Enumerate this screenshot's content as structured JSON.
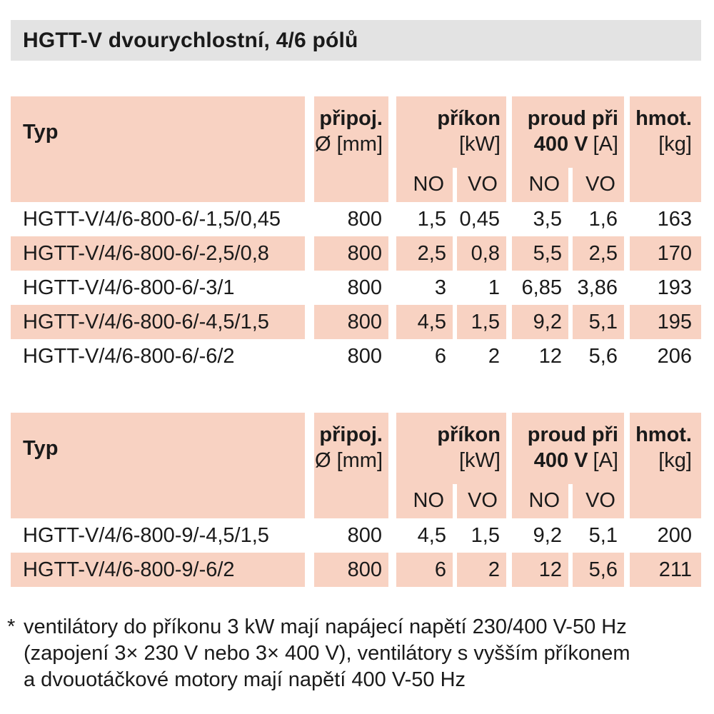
{
  "title": "HGTT-V dvourychlostní, 4/6 pólů",
  "colors": {
    "accent_bg": "#f8d2c2",
    "title_bg": "#e3e3e3",
    "text_color": "#1a1a1a"
  },
  "header": {
    "typ": "Typ",
    "pripoj_line1": "připoj.",
    "pripoj_line2": "Ø [mm]",
    "prikon_line1": "příkon",
    "prikon_line2": "[kW]",
    "proud_line1": "proud při",
    "proud_line2_value": "400 V",
    "proud_line2_unit": "[A]",
    "hmot_line1": "hmot.",
    "hmot_line2": "[kg]",
    "sub_no": "NO",
    "sub_vo": "VO"
  },
  "tables": [
    {
      "rows": [
        {
          "typ": "HGTT-V/4/6-800-6/-1,5/0,45",
          "diameter": "800",
          "power_no": "1,5",
          "power_vo": "0,45",
          "current_no": "3,5",
          "current_vo": "1,6",
          "weight": "163"
        },
        {
          "typ": "HGTT-V/4/6-800-6/-2,5/0,8",
          "diameter": "800",
          "power_no": "2,5",
          "power_vo": "0,8",
          "current_no": "5,5",
          "current_vo": "2,5",
          "weight": "170"
        },
        {
          "typ": "HGTT-V/4/6-800-6/-3/1",
          "diameter": "800",
          "power_no": "3",
          "power_vo": "1",
          "current_no": "6,85",
          "current_vo": "3,86",
          "weight": "193"
        },
        {
          "typ": "HGTT-V/4/6-800-6/-4,5/1,5",
          "diameter": "800",
          "power_no": "4,5",
          "power_vo": "1,5",
          "current_no": "9,2",
          "current_vo": "5,1",
          "weight": "195"
        },
        {
          "typ": "HGTT-V/4/6-800-6/-6/2",
          "diameter": "800",
          "power_no": "6",
          "power_vo": "2",
          "current_no": "12",
          "current_vo": "5,6",
          "weight": "206"
        }
      ]
    },
    {
      "rows": [
        {
          "typ": "HGTT-V/4/6-800-9/-4,5/1,5",
          "diameter": "800",
          "power_no": "4,5",
          "power_vo": "1,5",
          "current_no": "9,2",
          "current_vo": "5,1",
          "weight": "200"
        },
        {
          "typ": "HGTT-V/4/6-800-9/-6/2",
          "diameter": "800",
          "power_no": "6",
          "power_vo": "2",
          "current_no": "12",
          "current_vo": "5,6",
          "weight": "211"
        }
      ]
    }
  ],
  "footnote": {
    "marker": "*",
    "lines": [
      "ventilátory do příkonu 3 kW mají napájecí napětí 230/400 V-50 Hz",
      "(zapojení 3× 230 V nebo 3× 400 V), ventilátory s vyšším příkonem",
      "a dvouotáčkové motory mají napětí 400 V-50 Hz"
    ]
  }
}
